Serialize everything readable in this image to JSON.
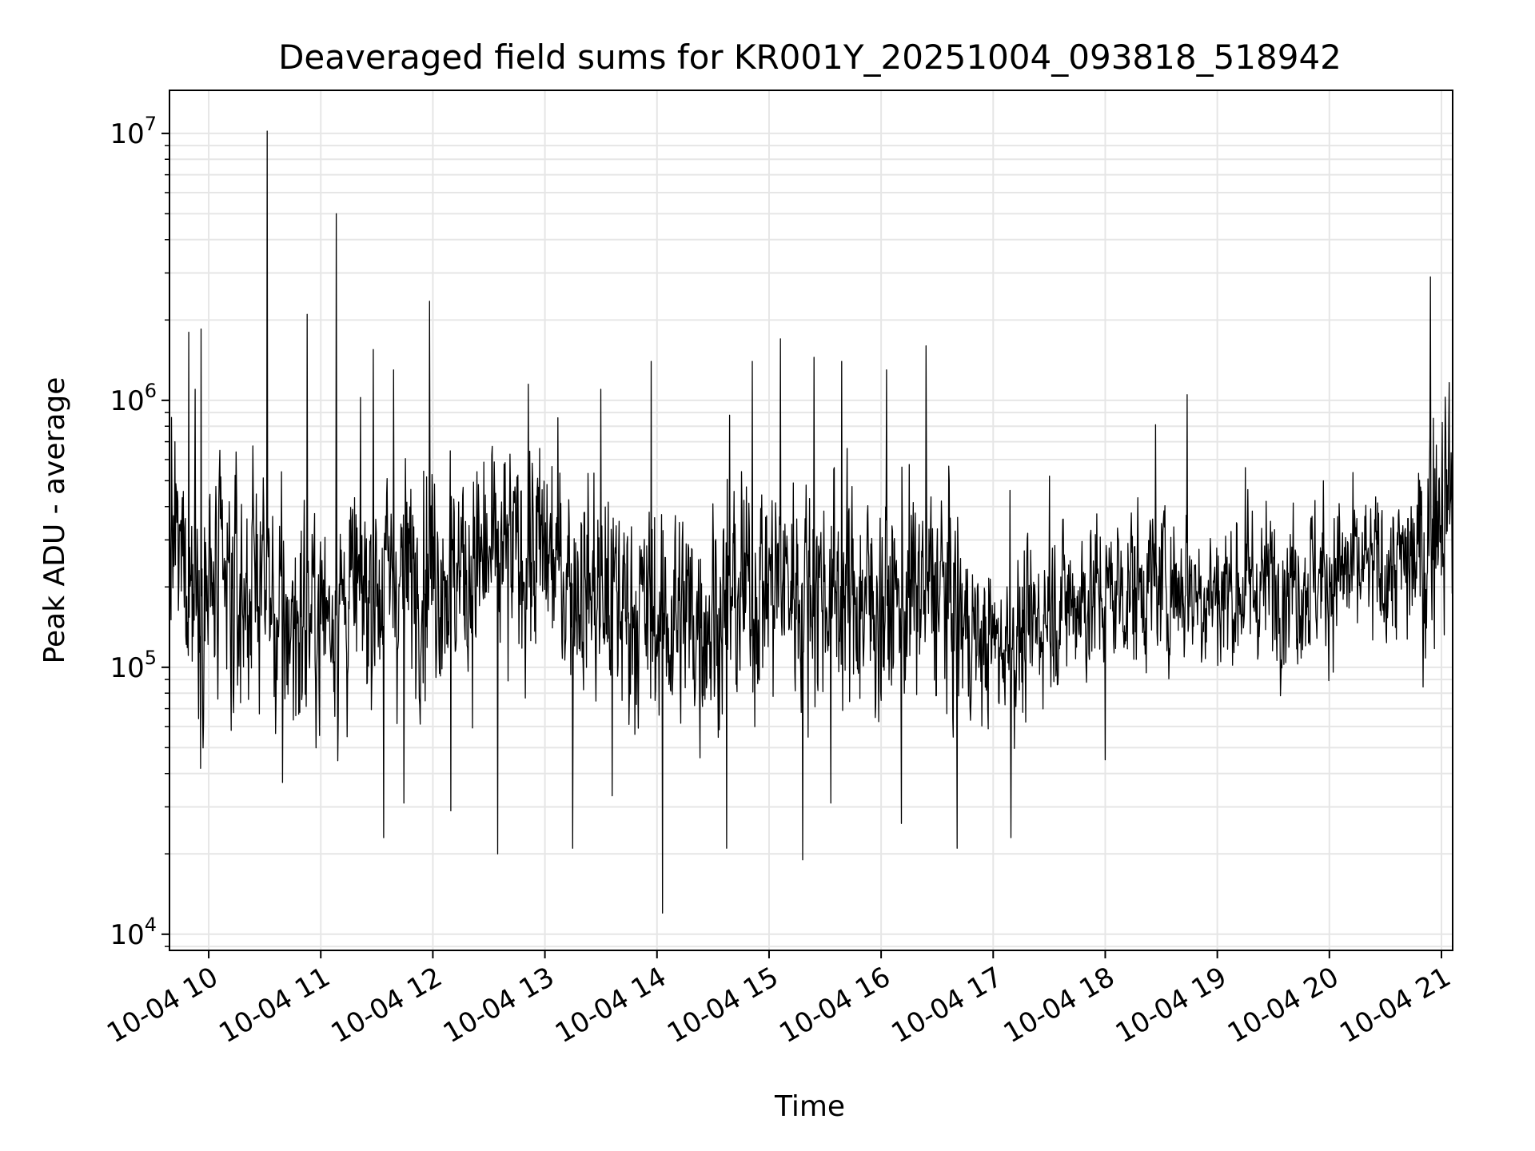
{
  "chart_data": {
    "type": "line",
    "title": "Deaveraged field sums for KR001Y_20251004_093818_518942",
    "xlabel": "Time",
    "ylabel": "Peak ADU - average",
    "yscale": "log",
    "xlim_hours": [
      9.65,
      21.1
    ],
    "ylim": [
      8700,
      14500000
    ],
    "grid": true,
    "line_color": "#000000",
    "grid_color": "#e6e6e6",
    "x_ticks": [
      {
        "hour": 10,
        "label": "10-04 10"
      },
      {
        "hour": 11,
        "label": "10-04 11"
      },
      {
        "hour": 12,
        "label": "10-04 12"
      },
      {
        "hour": 13,
        "label": "10-04 13"
      },
      {
        "hour": 14,
        "label": "10-04 14"
      },
      {
        "hour": 15,
        "label": "10-04 15"
      },
      {
        "hour": 16,
        "label": "10-04 16"
      },
      {
        "hour": 17,
        "label": "10-04 17"
      },
      {
        "hour": 18,
        "label": "10-04 18"
      },
      {
        "hour": 19,
        "label": "10-04 19"
      },
      {
        "hour": 20,
        "label": "10-04 20"
      },
      {
        "hour": 21,
        "label": "10-04 21"
      }
    ],
    "y_ticks": [
      {
        "value": 10000,
        "base": "10",
        "exp": "4"
      },
      {
        "value": 100000,
        "base": "10",
        "exp": "5"
      },
      {
        "value": 1000000,
        "base": "10",
        "exp": "6"
      },
      {
        "value": 10000000,
        "base": "10",
        "exp": "7"
      }
    ],
    "trend": [
      [
        9.65,
        300000
      ],
      [
        9.9,
        200000
      ],
      [
        10.3,
        180000
      ],
      [
        10.5,
        250000
      ],
      [
        10.6,
        140000
      ],
      [
        11.0,
        160000
      ],
      [
        11.5,
        200000
      ],
      [
        12.0,
        250000
      ],
      [
        12.3,
        230000
      ],
      [
        12.8,
        260000
      ],
      [
        13.0,
        260000
      ],
      [
        13.5,
        190000
      ],
      [
        14.0,
        150000
      ],
      [
        14.5,
        160000
      ],
      [
        15.0,
        210000
      ],
      [
        15.5,
        200000
      ],
      [
        16.0,
        170000
      ],
      [
        16.5,
        200000
      ],
      [
        16.9,
        120000
      ],
      [
        17.3,
        130000
      ],
      [
        17.5,
        170000
      ],
      [
        18.0,
        190000
      ],
      [
        18.5,
        210000
      ],
      [
        19.0,
        190000
      ],
      [
        19.5,
        210000
      ],
      [
        20.0,
        220000
      ],
      [
        20.5,
        230000
      ],
      [
        20.85,
        260000
      ],
      [
        20.95,
        420000
      ],
      [
        21.1,
        480000
      ]
    ],
    "spikes": [
      [
        9.7,
        700000
      ],
      [
        9.82,
        1800000
      ],
      [
        9.88,
        1100000
      ],
      [
        9.93,
        1850000
      ],
      [
        10.52,
        10200000
      ],
      [
        10.88,
        2100000
      ],
      [
        11.14,
        5000000
      ],
      [
        11.47,
        1550000
      ],
      [
        11.65,
        1300000
      ],
      [
        11.97,
        2350000
      ],
      [
        12.85,
        1150000
      ],
      [
        13.5,
        1100000
      ],
      [
        13.95,
        1400000
      ],
      [
        14.65,
        880000
      ],
      [
        14.85,
        1400000
      ],
      [
        15.1,
        1700000
      ],
      [
        15.4,
        1450000
      ],
      [
        15.65,
        1400000
      ],
      [
        16.05,
        1300000
      ],
      [
        16.4,
        1600000
      ],
      [
        17.15,
        460000
      ],
      [
        17.5,
        520000
      ],
      [
        18.45,
        810000
      ],
      [
        18.73,
        1050000
      ],
      [
        19.25,
        560000
      ],
      [
        20.9,
        2900000
      ],
      [
        10.08,
        76000
      ],
      [
        10.2,
        58000
      ],
      [
        10.66,
        37000
      ],
      [
        11.56,
        23000
      ],
      [
        11.74,
        31000
      ],
      [
        12.16,
        29000
      ],
      [
        12.58,
        20000
      ],
      [
        13.25,
        21000
      ],
      [
        13.6,
        33000
      ],
      [
        14.05,
        12000
      ],
      [
        14.62,
        21000
      ],
      [
        15.3,
        19000
      ],
      [
        15.55,
        31000
      ],
      [
        16.18,
        26000
      ],
      [
        16.68,
        21000
      ],
      [
        17.16,
        23000
      ],
      [
        18.0,
        45000
      ]
    ]
  }
}
